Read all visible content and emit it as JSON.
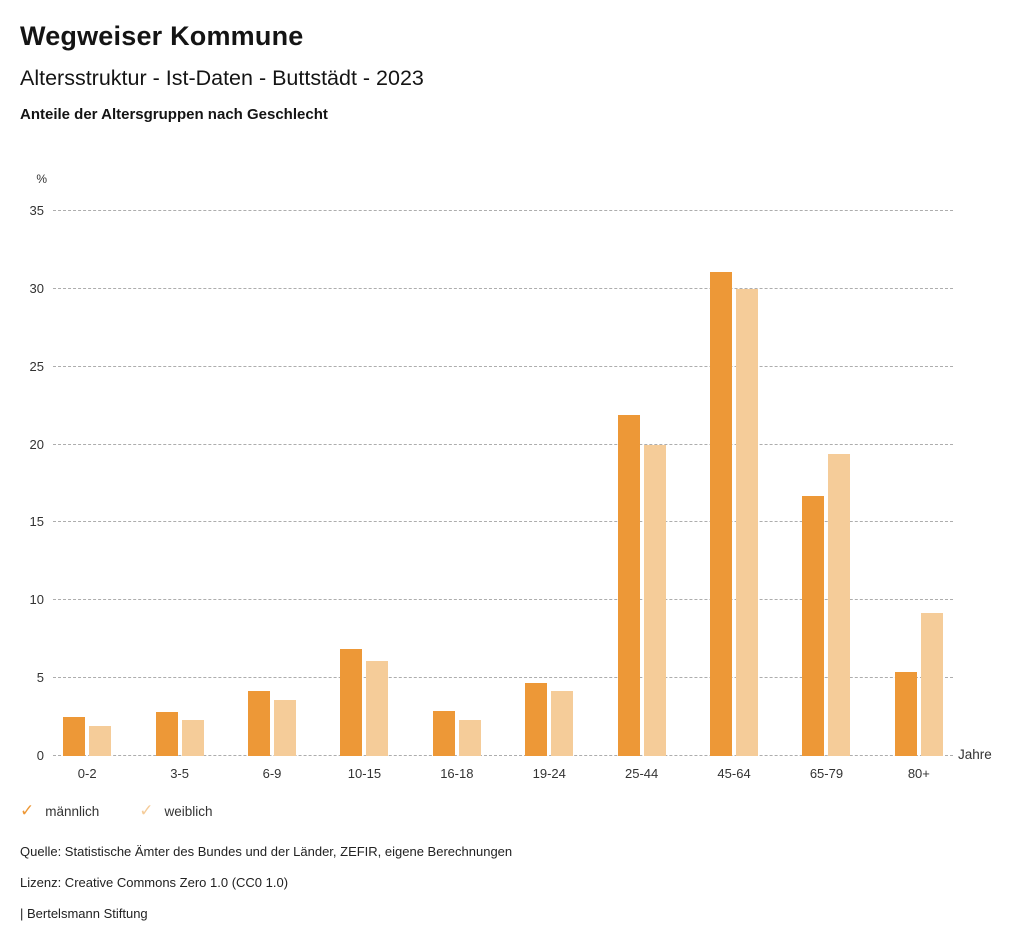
{
  "header": {
    "title": "Wegweiser Kommune",
    "subtitle": "Altersstruktur - Ist-Daten - Buttstädt - 2023",
    "chart_heading": "Anteile der Altersgruppen nach Geschlecht"
  },
  "chart_data": {
    "type": "bar",
    "title": "Anteile der Altersgruppen nach Geschlecht",
    "categories": [
      "0-2",
      "3-5",
      "6-9",
      "10-15",
      "16-18",
      "19-24",
      "25-44",
      "45-64",
      "65-79",
      "80+"
    ],
    "series": [
      {
        "name": "männlich",
        "color": "#ED9837",
        "values": [
          2.5,
          2.8,
          4.2,
          6.9,
          2.9,
          4.7,
          21.9,
          31.1,
          16.7,
          5.4
        ]
      },
      {
        "name": "weiblich",
        "color": "#F5CC99",
        "values": [
          1.9,
          2.3,
          3.6,
          6.1,
          2.3,
          4.2,
          20.0,
          30.0,
          19.4,
          9.2
        ]
      }
    ],
    "xlabel": "Jahre",
    "ylabel": "%",
    "ylim": [
      0,
      35
    ],
    "y_ticks": [
      0,
      5,
      10,
      15,
      20,
      25,
      30,
      35
    ],
    "grid": true,
    "grid_style": "dashed",
    "legend_position": "bottom-left"
  },
  "axis": {
    "percent_label": "%",
    "unit_label": "Jahre"
  },
  "legend": {
    "check_glyph": "✓",
    "items": [
      {
        "label": "männlich",
        "color": "#ED9837"
      },
      {
        "label": "weiblich",
        "color": "#F5CC99"
      }
    ]
  },
  "footer": {
    "source": "Quelle: Statistische Ämter des Bundes und der Länder, ZEFIR, eigene Berechnungen",
    "license": "Lizenz: Creative Commons Zero 1.0 (CC0 1.0)",
    "attribution": "| Bertelsmann Stiftung"
  }
}
